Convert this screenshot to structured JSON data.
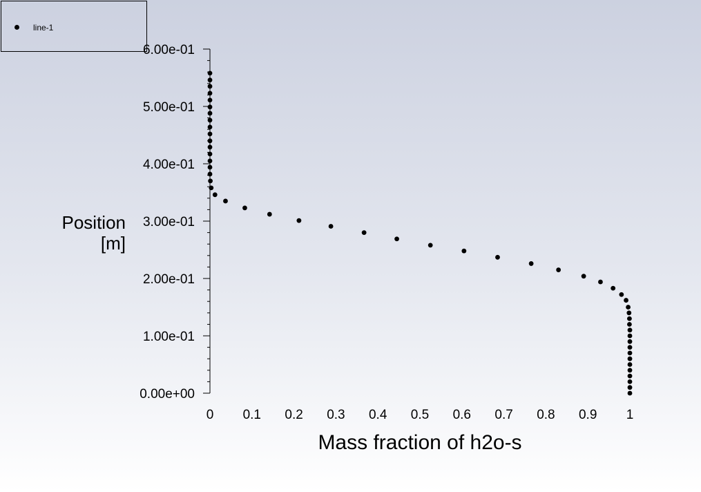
{
  "chart_data": {
    "type": "scatter",
    "xlabel": "Mass fraction of h2o-s",
    "ylabel_lines": [
      "Position",
      "[m]"
    ],
    "xlim": [
      0,
      1
    ],
    "ylim": [
      0,
      0.6
    ],
    "x_ticks": [
      0,
      0.1,
      0.2,
      0.3,
      0.4,
      0.5,
      0.6,
      0.7,
      0.8,
      0.9,
      1
    ],
    "x_tick_labels": [
      "0",
      "0.1",
      "0.2",
      "0.3",
      "0.4",
      "0.5",
      "0.6",
      "0.7",
      "0.8",
      "0.9",
      "1"
    ],
    "y_ticks": [
      0,
      0.1,
      0.2,
      0.3,
      0.4,
      0.5,
      0.6
    ],
    "y_tick_labels": [
      "0.00e+00",
      "1.00e-01",
      "2.00e-01",
      "3.00e-01",
      "4.00e-01",
      "5.00e-01",
      "6.00e-01"
    ],
    "y_minor_step": 0.02,
    "grid": false,
    "legend_position": "top-left",
    "marker_color": "#000000",
    "series": [
      {
        "name": "line-1",
        "points": [
          [
            1.0,
            0.0
          ],
          [
            1.0,
            0.01
          ],
          [
            1.0,
            0.02
          ],
          [
            1.0,
            0.03
          ],
          [
            1.0,
            0.04
          ],
          [
            1.0,
            0.05
          ],
          [
            1.0,
            0.06
          ],
          [
            1.0,
            0.07
          ],
          [
            1.0,
            0.08
          ],
          [
            1.0,
            0.09
          ],
          [
            1.0,
            0.1
          ],
          [
            1.0,
            0.11
          ],
          [
            0.999,
            0.12
          ],
          [
            0.999,
            0.13
          ],
          [
            0.998,
            0.14
          ],
          [
            0.996,
            0.15
          ],
          [
            0.991,
            0.162
          ],
          [
            0.98,
            0.172
          ],
          [
            0.96,
            0.183
          ],
          [
            0.93,
            0.194
          ],
          [
            0.89,
            0.204
          ],
          [
            0.83,
            0.215
          ],
          [
            0.765,
            0.226
          ],
          [
            0.685,
            0.237
          ],
          [
            0.605,
            0.248
          ],
          [
            0.525,
            0.258
          ],
          [
            0.445,
            0.269
          ],
          [
            0.367,
            0.28
          ],
          [
            0.288,
            0.291
          ],
          [
            0.212,
            0.301
          ],
          [
            0.142,
            0.312
          ],
          [
            0.083,
            0.323
          ],
          [
            0.037,
            0.335
          ],
          [
            0.012,
            0.346
          ],
          [
            0.003,
            0.358
          ],
          [
            0.001,
            0.37
          ],
          [
            0.0,
            0.382
          ],
          [
            0.0,
            0.394
          ],
          [
            0.0,
            0.405
          ],
          [
            0.0,
            0.417
          ],
          [
            0.0,
            0.429
          ],
          [
            0.0,
            0.44
          ],
          [
            0.0,
            0.452
          ],
          [
            0.0,
            0.464
          ],
          [
            0.0,
            0.476
          ],
          [
            0.0,
            0.488
          ],
          [
            0.0,
            0.499
          ],
          [
            0.0,
            0.511
          ],
          [
            0.0,
            0.523
          ],
          [
            0.0,
            0.535
          ],
          [
            0.0,
            0.546
          ],
          [
            0.0,
            0.558
          ]
        ]
      }
    ]
  }
}
